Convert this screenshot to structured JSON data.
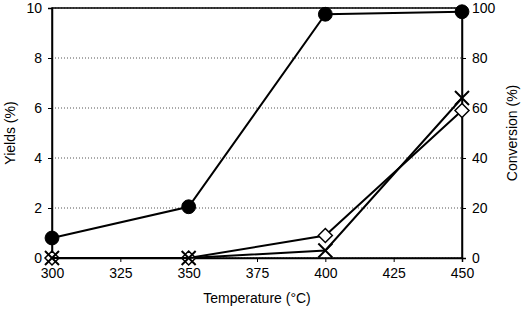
{
  "chart_data": {
    "type": "line",
    "x_label": "Temperature (°C)",
    "y_label": "Yields (%)",
    "y2_label": "Conversion (%)",
    "x": [
      300,
      350,
      400,
      450
    ],
    "xlim": [
      300,
      450
    ],
    "xticks": [
      300,
      325,
      350,
      375,
      400,
      425,
      450
    ],
    "ylim": [
      0,
      10
    ],
    "yticks": [
      0,
      2,
      4,
      6,
      8,
      10
    ],
    "y2lim": [
      0,
      100
    ],
    "y2ticks": [
      0,
      20,
      40,
      60,
      80,
      100
    ],
    "grid": true,
    "series": [
      {
        "color": "#000000",
        "marker": "circle",
        "line_style": "solid",
        "axis": "y2",
        "values": [
          8,
          20.5,
          97.5,
          98.5
        ]
      },
      {
        "color": "#000000",
        "marker": "diamond",
        "line_style": "solid",
        "values": [
          0,
          0,
          0.9,
          5.9
        ]
      },
      {
        "color": "#000000",
        "marker": "x",
        "line_style": "solid",
        "values": [
          0,
          0,
          0.3,
          6.4
        ]
      }
    ]
  }
}
